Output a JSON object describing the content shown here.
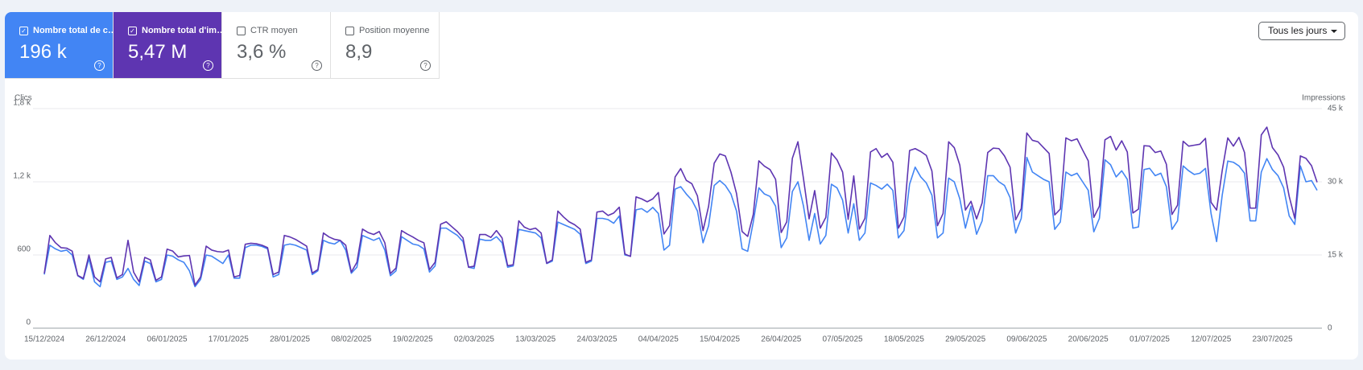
{
  "metrics": [
    {
      "label": "Nombre total de c…",
      "value": "196 k"
    },
    {
      "label": "Nombre total d'im…",
      "value": "5,47 M"
    },
    {
      "label": "CTR moyen",
      "value": "3,6 %"
    },
    {
      "label": "Position moyenne",
      "value": "8,9"
    }
  ],
  "controls": {
    "period": "Tous les jours"
  },
  "chart_data": {
    "type": "line",
    "y_label": "Clics",
    "y2_label": "Impressions",
    "grid": true,
    "ylim": [
      0,
      1800
    ],
    "yticks": [
      0,
      600,
      {
        "value": 1200,
        "label": "1,2 k"
      },
      {
        "value": 1800,
        "label": "1,8 k"
      }
    ],
    "y2lim": [
      0,
      45000
    ],
    "y2ticks": [
      0,
      {
        "value": 15000,
        "label": "15 k"
      },
      {
        "value": 30000,
        "label": "30 k"
      },
      {
        "value": 45000,
        "label": "45 k"
      }
    ],
    "xtick_every": 11,
    "x": [
      "15/12/2024",
      "16/12/2024",
      "17/12/2024",
      "18/12/2024",
      "19/12/2024",
      "20/12/2024",
      "21/12/2024",
      "22/12/2024",
      "23/12/2024",
      "24/12/2024",
      "25/12/2024",
      "26/12/2024",
      "27/12/2024",
      "28/12/2024",
      "29/12/2024",
      "30/12/2024",
      "31/12/2024",
      "01/01/2025",
      "02/01/2025",
      "03/01/2025",
      "04/01/2025",
      "05/01/2025",
      "06/01/2025",
      "07/01/2025",
      "08/01/2025",
      "09/01/2025",
      "10/01/2025",
      "11/01/2025",
      "12/01/2025",
      "13/01/2025",
      "14/01/2025",
      "15/01/2025",
      "16/01/2025",
      "17/01/2025",
      "18/01/2025",
      "19/01/2025",
      "20/01/2025",
      "21/01/2025",
      "22/01/2025",
      "23/01/2025",
      "24/01/2025",
      "25/01/2025",
      "26/01/2025",
      "27/01/2025",
      "28/01/2025",
      "29/01/2025",
      "30/01/2025",
      "31/01/2025",
      "01/02/2025",
      "02/02/2025",
      "03/02/2025",
      "04/02/2025",
      "05/02/2025",
      "06/02/2025",
      "07/02/2025",
      "08/02/2025",
      "09/02/2025",
      "10/02/2025",
      "11/02/2025",
      "12/02/2025",
      "13/02/2025",
      "14/02/2025",
      "15/02/2025",
      "16/02/2025",
      "17/02/2025",
      "18/02/2025",
      "19/02/2025",
      "20/02/2025",
      "21/02/2025",
      "22/02/2025",
      "23/02/2025",
      "24/02/2025",
      "25/02/2025",
      "26/02/2025",
      "27/02/2025",
      "28/02/2025",
      "01/03/2025",
      "02/03/2025",
      "03/03/2025",
      "04/03/2025",
      "05/03/2025",
      "06/03/2025",
      "07/03/2025",
      "08/03/2025",
      "09/03/2025",
      "10/03/2025",
      "11/03/2025",
      "12/03/2025",
      "13/03/2025",
      "14/03/2025",
      "15/03/2025",
      "16/03/2025",
      "17/03/2025",
      "18/03/2025",
      "19/03/2025",
      "20/03/2025",
      "21/03/2025",
      "22/03/2025",
      "23/03/2025",
      "24/03/2025",
      "25/03/2025",
      "26/03/2025",
      "27/03/2025",
      "28/03/2025",
      "29/03/2025",
      "30/03/2025",
      "31/03/2025",
      "01/04/2025",
      "02/04/2025",
      "03/04/2025",
      "04/04/2025",
      "05/04/2025",
      "06/04/2025",
      "07/04/2025",
      "08/04/2025",
      "09/04/2025",
      "10/04/2025",
      "11/04/2025",
      "12/04/2025",
      "13/04/2025",
      "14/04/2025",
      "15/04/2025",
      "16/04/2025",
      "17/04/2025",
      "18/04/2025",
      "19/04/2025",
      "20/04/2025",
      "21/04/2025",
      "22/04/2025",
      "23/04/2025",
      "24/04/2025",
      "25/04/2025",
      "26/04/2025",
      "27/04/2025",
      "28/04/2025",
      "29/04/2025",
      "30/04/2025",
      "01/05/2025",
      "02/05/2025",
      "03/05/2025",
      "04/05/2025",
      "05/05/2025",
      "06/05/2025",
      "07/05/2025",
      "08/05/2025",
      "09/05/2025",
      "10/05/2025",
      "11/05/2025",
      "12/05/2025",
      "13/05/2025",
      "14/05/2025",
      "15/05/2025",
      "16/05/2025",
      "17/05/2025",
      "18/05/2025",
      "19/05/2025",
      "20/05/2025",
      "21/05/2025",
      "22/05/2025",
      "23/05/2025",
      "24/05/2025",
      "25/05/2025",
      "26/05/2025",
      "27/05/2025",
      "28/05/2025",
      "29/05/2025",
      "30/05/2025",
      "31/05/2025",
      "01/06/2025",
      "02/06/2025",
      "03/06/2025",
      "04/06/2025",
      "05/06/2025",
      "06/06/2025",
      "07/06/2025",
      "08/06/2025",
      "09/06/2025",
      "10/06/2025",
      "11/06/2025",
      "12/06/2025",
      "13/06/2025",
      "14/06/2025",
      "15/06/2025",
      "16/06/2025",
      "17/06/2025",
      "18/06/2025",
      "19/06/2025",
      "20/06/2025",
      "21/06/2025",
      "22/06/2025",
      "23/06/2025",
      "24/06/2025",
      "25/06/2025",
      "26/06/2025",
      "27/06/2025",
      "28/06/2025",
      "29/06/2025",
      "30/06/2025",
      "01/07/2025",
      "02/07/2025",
      "03/07/2025",
      "04/07/2025",
      "05/07/2025",
      "06/07/2025",
      "07/07/2025",
      "08/07/2025",
      "09/07/2025",
      "10/07/2025",
      "11/07/2025",
      "12/07/2025",
      "13/07/2025",
      "14/07/2025",
      "15/07/2025",
      "16/07/2025",
      "17/07/2025",
      "18/07/2025",
      "19/07/2025",
      "20/07/2025",
      "21/07/2025",
      "22/07/2025",
      "23/07/2025",
      "24/07/2025",
      "25/07/2025",
      "26/07/2025",
      "27/07/2025",
      "28/07/2025",
      "29/07/2025",
      "30/07/2025",
      "31/07/2025"
    ],
    "series": [
      {
        "name": "Clics",
        "color": "#4285f4",
        "values": [
          440,
          680,
          650,
          630,
          640,
          600,
          430,
          400,
          570,
          380,
          340,
          540,
          550,
          400,
          420,
          490,
          400,
          350,
          550,
          530,
          380,
          400,
          600,
          590,
          560,
          540,
          470,
          340,
          400,
          600,
          590,
          560,
          530,
          600,
          410,
          410,
          660,
          680,
          680,
          670,
          650,
          420,
          440,
          680,
          690,
          680,
          660,
          640,
          440,
          470,
          720,
          700,
          690,
          720,
          640,
          450,
          500,
          760,
          740,
          720,
          740,
          640,
          430,
          470,
          750,
          720,
          690,
          680,
          650,
          460,
          510,
          820,
          820,
          790,
          760,
          710,
          500,
          490,
          730,
          720,
          720,
          750,
          700,
          500,
          510,
          810,
          800,
          790,
          780,
          740,
          530,
          550,
          870,
          850,
          830,
          810,
          770,
          530,
          550,
          900,
          900,
          890,
          860,
          920,
          600,
          590,
          970,
          980,
          950,
          990,
          940,
          640,
          680,
          1140,
          1160,
          1100,
          1050,
          960,
          700,
          840,
          1170,
          1210,
          1170,
          1100,
          960,
          650,
          630,
          870,
          1150,
          1100,
          1080,
          1000,
          660,
          740,
          1120,
          1200,
          1000,
          720,
          940,
          690,
          760,
          1180,
          1150,
          1050,
          780,
          1020,
          720,
          780,
          1190,
          1170,
          1140,
          1180,
          1130,
          740,
          800,
          1180,
          1320,
          1240,
          1190,
          1090,
          740,
          780,
          1230,
          1200,
          1060,
          820,
          1000,
          770,
          880,
          1250,
          1250,
          1200,
          1170,
          1070,
          780,
          900,
          1400,
          1280,
          1250,
          1220,
          1200,
          810,
          870,
          1280,
          1250,
          1270,
          1200,
          1130,
          790,
          900,
          1380,
          1340,
          1240,
          1290,
          1220,
          820,
          830,
          1300,
          1310,
          1250,
          1270,
          1160,
          810,
          880,
          1330,
          1290,
          1260,
          1270,
          1310,
          940,
          710,
          1090,
          1370,
          1360,
          1330,
          1270,
          880,
          880,
          1280,
          1390,
          1300,
          1250,
          1150,
          920,
          850,
          1330,
          1200,
          1210,
          1130
        ]
      },
      {
        "name": "Impressions",
        "color": "#5e35b1",
        "axis": "y2",
        "values": [
          11200,
          19000,
          17500,
          16500,
          16400,
          15800,
          10800,
          10200,
          15000,
          10500,
          9500,
          14200,
          14500,
          10300,
          11000,
          18000,
          11500,
          9500,
          14500,
          14000,
          9800,
          10500,
          16200,
          15800,
          14600,
          14800,
          14900,
          8800,
          10500,
          16800,
          16000,
          15700,
          15600,
          16000,
          10500,
          10800,
          17200,
          17400,
          17300,
          17000,
          16500,
          11000,
          11500,
          19000,
          18700,
          18200,
          17500,
          16800,
          11300,
          12000,
          19500,
          18700,
          18200,
          18000,
          17000,
          11500,
          13500,
          20300,
          19600,
          19200,
          19800,
          17500,
          11200,
          12300,
          20000,
          19300,
          18700,
          18000,
          17500,
          12000,
          13500,
          21300,
          21800,
          20800,
          19800,
          18500,
          12500,
          12700,
          19200,
          19200,
          18600,
          20000,
          18500,
          12800,
          13000,
          22000,
          20700,
          20200,
          20500,
          19500,
          13300,
          14000,
          24000,
          22800,
          21800,
          21200,
          20300,
          13500,
          14000,
          23800,
          24000,
          23100,
          23600,
          24800,
          15200,
          14700,
          26900,
          26500,
          25900,
          26500,
          27800,
          19300,
          21000,
          31000,
          32700,
          30300,
          29600,
          27100,
          20000,
          25000,
          33800,
          35700,
          35300,
          32000,
          27600,
          19800,
          18800,
          23300,
          34300,
          33200,
          32500,
          30500,
          19600,
          21800,
          34800,
          38200,
          30600,
          22400,
          28200,
          20500,
          22700,
          35900,
          34500,
          32000,
          22300,
          31200,
          20300,
          22500,
          36100,
          36800,
          35000,
          35800,
          34000,
          20500,
          22800,
          36400,
          36800,
          36200,
          35400,
          32200,
          21000,
          23500,
          38200,
          37000,
          33400,
          24200,
          26000,
          22400,
          25700,
          36000,
          36900,
          36800,
          35300,
          33000,
          22200,
          24500,
          40000,
          38500,
          38200,
          37000,
          35800,
          23200,
          24400,
          39000,
          38400,
          38800,
          36500,
          34300,
          22700,
          25000,
          38600,
          39300,
          36500,
          38400,
          36100,
          23600,
          24400,
          37400,
          37300,
          36000,
          36300,
          33600,
          23300,
          25200,
          38300,
          37300,
          37500,
          37700,
          38900,
          25800,
          24200,
          32300,
          39000,
          37300,
          39100,
          36000,
          24600,
          24600,
          39600,
          41200,
          37000,
          35500,
          33000,
          27000,
          22500,
          35300,
          34800,
          33300,
          29900
        ]
      }
    ]
  }
}
